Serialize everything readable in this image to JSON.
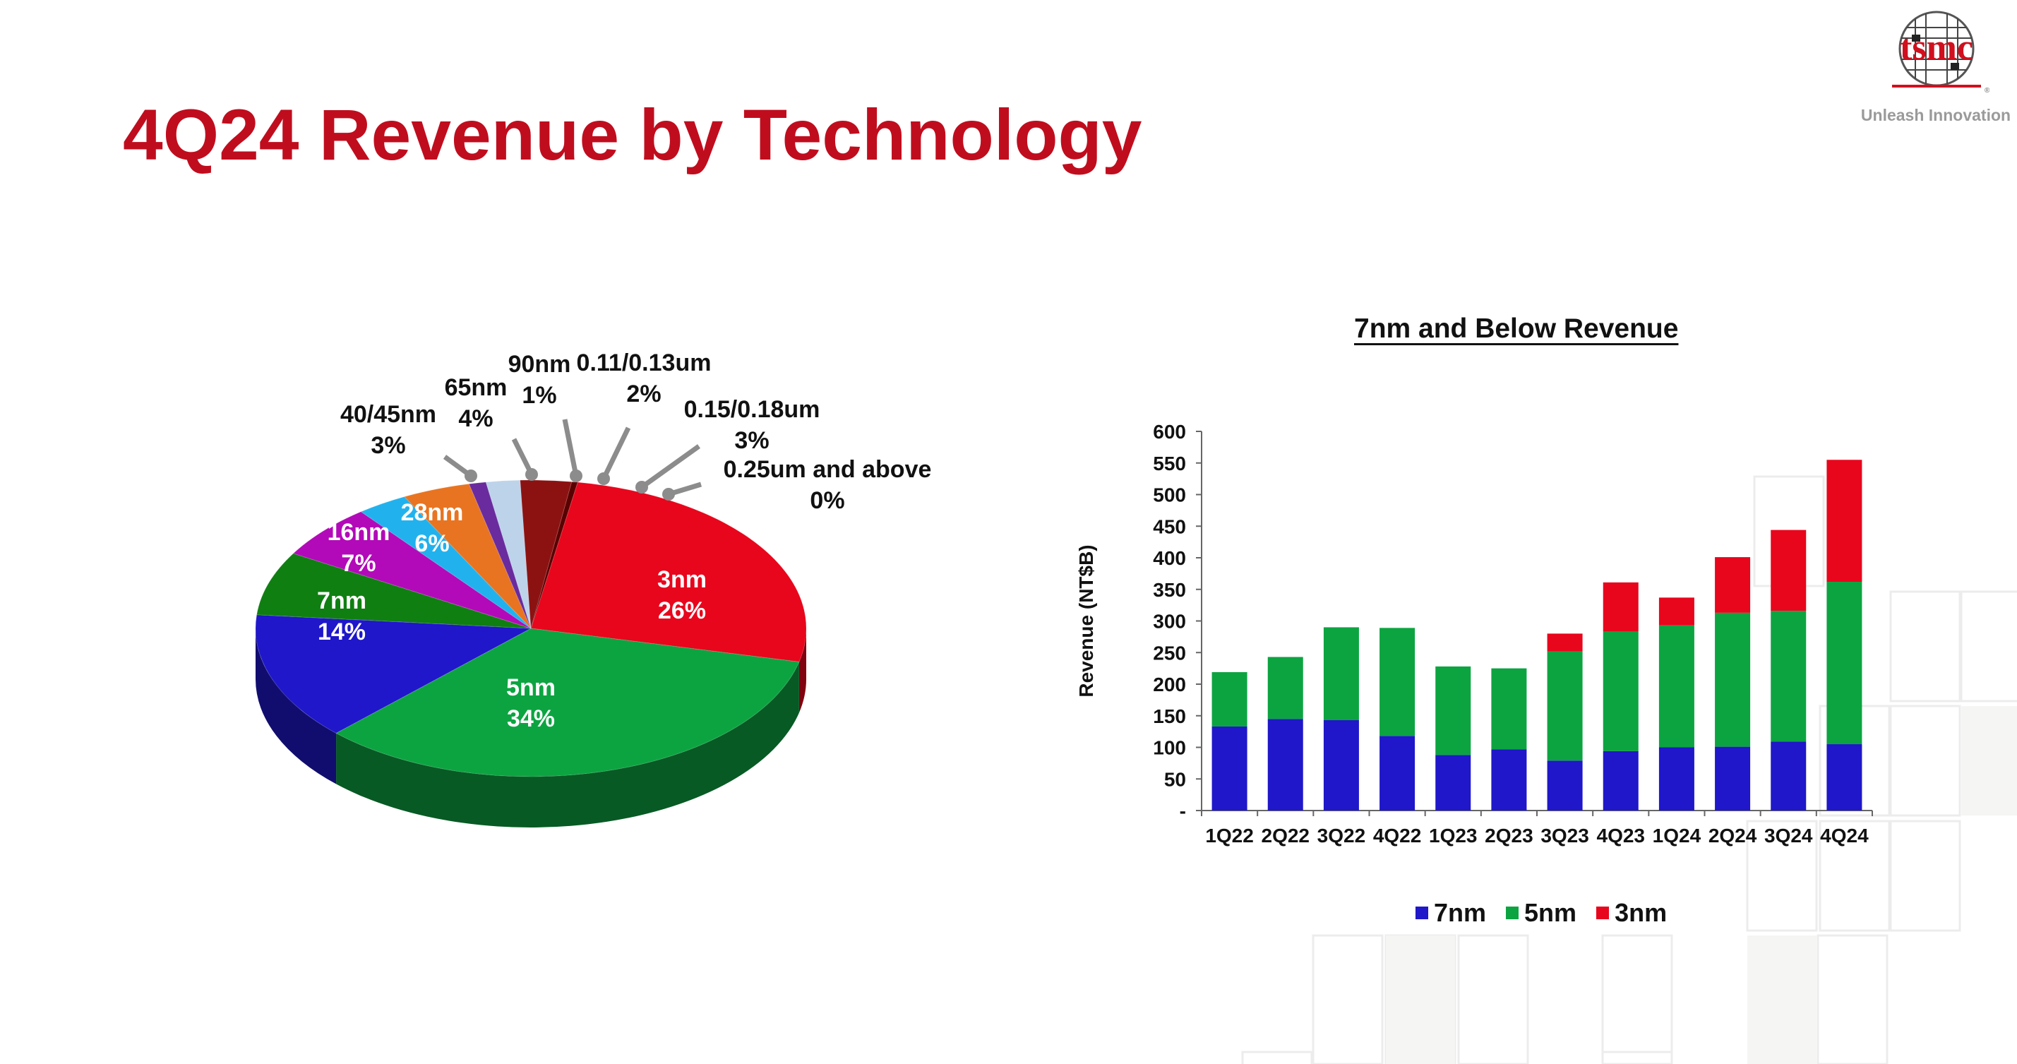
{
  "slide": {
    "title": "4Q24 Revenue by Technology",
    "logo_text": "tsmc",
    "logo_mark": "®",
    "tagline": "Unleash Innovation"
  },
  "colors": {
    "title": "#c00d1e",
    "n3": "#e8061c",
    "n5": "#0ca441",
    "n7": "#1f17c9",
    "n16": "#0f7f11",
    "n28": "#b20ab8",
    "n4045": "#21b2ee",
    "n65": "#e87421",
    "n90": "#6a2b9e",
    "n011": "#bdd3ea",
    "n015": "#8c1212"
  },
  "chart_data": [
    {
      "type": "pie",
      "title": "",
      "slices": [
        {
          "label": "3nm",
          "value": 26,
          "value_label": "26%",
          "color": "#e8061c"
        },
        {
          "label": "5nm",
          "value": 34,
          "value_label": "34%",
          "color": "#0ca441"
        },
        {
          "label": "7nm",
          "value": 14,
          "value_label": "14%",
          "color": "#1f17c9"
        },
        {
          "label": "16nm",
          "value": 7,
          "value_label": "7%",
          "color": "#0f7f11"
        },
        {
          "label": "28nm",
          "value": 6,
          "value_label": "6%",
          "color": "#b20ab8"
        },
        {
          "label": "40/45nm",
          "value": 3,
          "value_label": "3%",
          "color": "#21b2ee"
        },
        {
          "label": "65nm",
          "value": 4,
          "value_label": "4%",
          "color": "#e87421"
        },
        {
          "label": "90nm",
          "value": 1,
          "value_label": "1%",
          "color": "#6a2b9e"
        },
        {
          "label": "0.11/0.13um",
          "value": 2,
          "value_label": "2%",
          "color": "#bdd3ea"
        },
        {
          "label": "0.15/0.18um",
          "value": 3,
          "value_label": "3%",
          "color": "#8c1212"
        },
        {
          "label": "0.25um and above",
          "value": 0,
          "value_label": "0%",
          "color": "#5a0000"
        }
      ]
    },
    {
      "type": "bar",
      "stacked": true,
      "title": "7nm and Below Revenue",
      "ylabel": "Revenue (NT$B)",
      "ylim": [
        0,
        600
      ],
      "yticks": [
        0,
        50,
        100,
        150,
        200,
        250,
        300,
        350,
        400,
        450,
        500,
        550,
        600
      ],
      "ytick_labels": [
        "-",
        "50",
        "100",
        "150",
        "200",
        "250",
        "300",
        "350",
        "400",
        "450",
        "500",
        "550",
        "600"
      ],
      "categories": [
        "1Q22",
        "2Q22",
        "3Q22",
        "4Q22",
        "1Q23",
        "2Q23",
        "3Q23",
        "4Q23",
        "1Q24",
        "2Q24",
        "3Q24",
        "4Q24"
      ],
      "series": [
        {
          "name": "7nm",
          "color": "#1f17c9",
          "values": [
            133,
            145,
            143,
            118,
            88,
            97,
            79,
            94,
            100,
            101,
            109,
            105
          ]
        },
        {
          "name": "5nm",
          "color": "#0ca441",
          "values": [
            86,
            98,
            147,
            171,
            140,
            128,
            173,
            189,
            193,
            212,
            207,
            257
          ]
        },
        {
          "name": "3nm",
          "color": "#e8061c",
          "values": [
            0,
            0,
            0,
            0,
            0,
            0,
            28,
            78,
            44,
            88,
            128,
            193
          ]
        }
      ],
      "legend": "bottom"
    }
  ]
}
